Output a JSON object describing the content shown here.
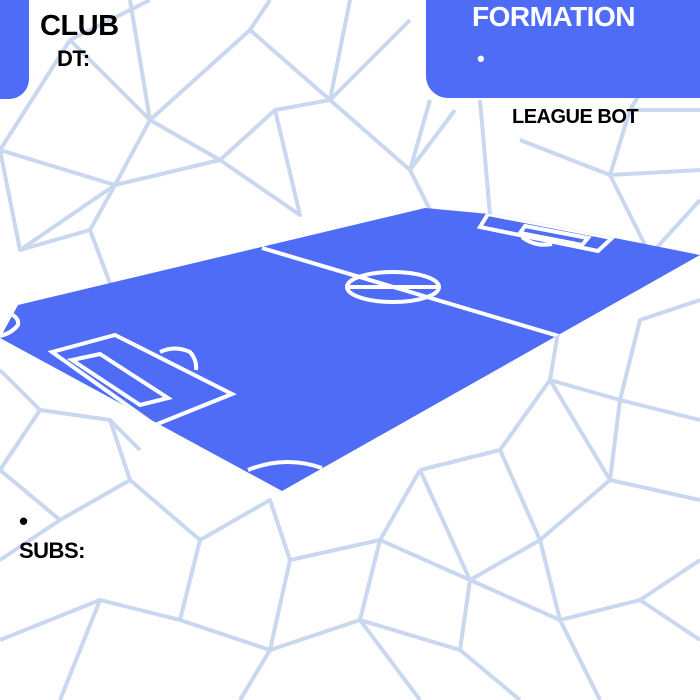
{
  "header": {
    "club_label": "CLUB",
    "dt_label": "DT:",
    "formation_label": "FORMATION",
    "formation_bullet": "•",
    "league_label": "LEAGUE BOT"
  },
  "subs": {
    "bullet": "•",
    "label": "SUBS:"
  },
  "colors": {
    "accent": "#4f6cf7",
    "pattern_lines": "#c9d7ef",
    "pitch_lines": "#ffffff",
    "text": "#000000"
  }
}
